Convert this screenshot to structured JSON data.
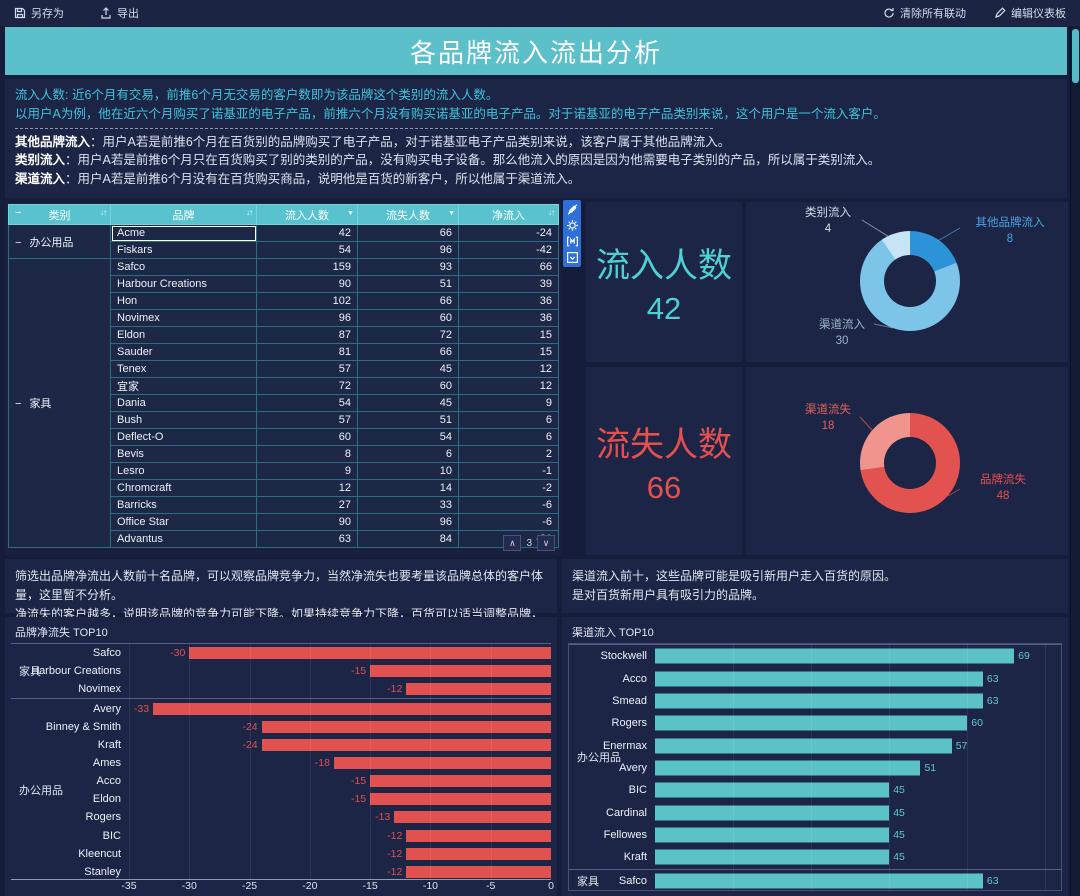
{
  "topbar": {
    "left": [
      {
        "label": "另存为",
        "icon": "save"
      },
      {
        "label": "导出",
        "icon": "export"
      }
    ],
    "right": [
      {
        "label": "清除所有联动",
        "icon": "refresh"
      },
      {
        "label": "编辑仪表板",
        "icon": "edit"
      }
    ]
  },
  "title": "各品牌流入流出分析",
  "description": {
    "intro": [
      "流入人数: 近6个月有交易，前推6个月无交易的客户数即为该品牌这个类别的流入人数。",
      "以用户A为例，他在近六个月购买了诺基亚的电子产品，前推六个月没有购买诺基亚的电子产品。对于诺基亚的电子产品类别来说，这个用户是一个流入客户。"
    ],
    "definitions": [
      {
        "term": "其他品牌流入",
        "text": "：用户A若是前推6个月在百货别的品牌购买了电子产品，对于诺基亚电子产品类别来说，该客户属于其他品牌流入。"
      },
      {
        "term": "类别流入",
        "text": "：用户A若是前推6个月只在百货购买了别的类别的产品，没有购买电子设备。那么他流入的原因是因为他需要电子类别的产品，所以属于类别流入。"
      },
      {
        "term": "渠道流入",
        "text": "：用户A若是前推6个月没有在百货购买商品，说明他是百货的新客户，所以他属于渠道流入。"
      }
    ]
  },
  "table": {
    "columns": [
      {
        "label": "类别",
        "icon": "sort",
        "collapse": "−"
      },
      {
        "label": "品牌",
        "icon": "sort"
      },
      {
        "label": "流入人数",
        "icon": "dropdown"
      },
      {
        "label": "流失人数",
        "icon": "dropdown"
      },
      {
        "label": "净流入",
        "icon": "sort"
      }
    ],
    "groups": [
      {
        "category": "办公用品",
        "rows": [
          {
            "brand": "Acme",
            "inflow": 42,
            "outflow": 66,
            "net": -24,
            "selected": true
          },
          {
            "brand": "Fiskars",
            "inflow": 54,
            "outflow": 96,
            "net": -42
          }
        ]
      },
      {
        "category": "家具",
        "rows": [
          {
            "brand": "Safco",
            "inflow": 159,
            "outflow": 93,
            "net": 66
          },
          {
            "brand": "Harbour Creations",
            "inflow": 90,
            "outflow": 51,
            "net": 39
          },
          {
            "brand": "Hon",
            "inflow": 102,
            "outflow": 66,
            "net": 36
          },
          {
            "brand": "Novimex",
            "inflow": 96,
            "outflow": 60,
            "net": 36
          },
          {
            "brand": "Eldon",
            "inflow": 87,
            "outflow": 72,
            "net": 15
          },
          {
            "brand": "Sauder",
            "inflow": 81,
            "outflow": 66,
            "net": 15
          },
          {
            "brand": "Tenex",
            "inflow": 57,
            "outflow": 45,
            "net": 12
          },
          {
            "brand": "宜家",
            "inflow": 72,
            "outflow": 60,
            "net": 12
          },
          {
            "brand": "Dania",
            "inflow": 54,
            "outflow": 45,
            "net": 9
          },
          {
            "brand": "Bush",
            "inflow": 57,
            "outflow": 51,
            "net": 6
          },
          {
            "brand": "Deflect-O",
            "inflow": 60,
            "outflow": 54,
            "net": 6
          },
          {
            "brand": "Bevis",
            "inflow": 8,
            "outflow": 6,
            "net": 2
          },
          {
            "brand": "Lesro",
            "inflow": 9,
            "outflow": 10,
            "net": -1
          },
          {
            "brand": "Chromcraft",
            "inflow": 12,
            "outflow": 14,
            "net": -2
          },
          {
            "brand": "Barricks",
            "inflow": 27,
            "outflow": 33,
            "net": -6
          },
          {
            "brand": "Office Star",
            "inflow": 90,
            "outflow": 96,
            "net": -6
          },
          {
            "brand": "Advantus",
            "inflow": 63,
            "outflow": 84,
            "net": -21
          }
        ]
      }
    ],
    "pagination": {
      "page": "3"
    }
  },
  "kpi": {
    "inflow": {
      "label": "流入人数",
      "value": "42",
      "color": "#4fd0d4"
    },
    "outflow": {
      "label": "流失人数",
      "value": "66",
      "color": "#e4504e"
    }
  },
  "notes": {
    "left": [
      "筛选出品牌净流出人数前十名品牌，可以观察品牌竞争力，当然净流失也要考量该品牌总体的客户体量，这里暂不分析。",
      "净流失的客户越多，说明该品牌的竞争力可能下降。如果持续竞争力下降，百货可以适当调整品牌，更换更具竞争力的品牌。"
    ],
    "right": [
      "渠道流入前十，这些品牌可能是吸引新用户走入百货的原因。",
      "是对百货新用户具有吸引力的品牌。"
    ]
  },
  "chart_data": [
    {
      "type": "pie",
      "name": "流入构成",
      "donut": true,
      "total": 42,
      "legend_position": "callout-labels",
      "slices": [
        {
          "name": "其他品牌流入",
          "value": 8,
          "color": "#2d93d8"
        },
        {
          "name": "渠道流入",
          "value": 30,
          "color": "#7cc5e9"
        },
        {
          "name": "类别流入",
          "value": 4,
          "color": "#c6e4f4"
        }
      ]
    },
    {
      "type": "pie",
      "name": "流失构成",
      "donut": true,
      "total": 66,
      "legend_position": "callout-labels",
      "slices": [
        {
          "name": "品牌流失",
          "value": 48,
          "color": "#e25350"
        },
        {
          "name": "渠道流失",
          "value": 18,
          "color": "#f2948e"
        }
      ]
    },
    {
      "type": "bar",
      "title": "品牌净流失 TOP10",
      "orientation": "horizontal",
      "xlim": [
        -35,
        0
      ],
      "xticks": [
        -35,
        -30,
        -25,
        -20,
        -15,
        -10,
        -5,
        0
      ],
      "bar_color": "#e15150",
      "grid": true,
      "groups": [
        {
          "name": "家具",
          "bars": [
            {
              "brand": "Safco",
              "value": -30
            },
            {
              "brand": "Harbour Creations",
              "value": -15
            },
            {
              "brand": "Novimex",
              "value": -12
            }
          ]
        },
        {
          "name": "办公用品",
          "bars": [
            {
              "brand": "Avery",
              "value": -33
            },
            {
              "brand": "Binney & Smith",
              "value": -24
            },
            {
              "brand": "Kraft",
              "value": -24
            },
            {
              "brand": "Ames",
              "value": -18
            },
            {
              "brand": "Acco",
              "value": -15
            },
            {
              "brand": "Eldon",
              "value": -15
            },
            {
              "brand": "Rogers",
              "value": -13
            },
            {
              "brand": "BIC",
              "value": -12
            },
            {
              "brand": "Kleencut",
              "value": -12
            },
            {
              "brand": "Stanley",
              "value": -12
            }
          ]
        }
      ]
    },
    {
      "type": "bar",
      "title": "渠道流入 TOP10",
      "orientation": "horizontal",
      "xlim": [
        0,
        78
      ],
      "gridline_step": 15,
      "bar_color": "#5bc3c8",
      "grid": true,
      "groups": [
        {
          "name": "办公用品",
          "bars": [
            {
              "brand": "Stockwell",
              "value": 69
            },
            {
              "brand": "Acco",
              "value": 63
            },
            {
              "brand": "Smead",
              "value": 63
            },
            {
              "brand": "Rogers",
              "value": 60
            },
            {
              "brand": "Enermax",
              "value": 57
            },
            {
              "brand": "Avery",
              "value": 51
            },
            {
              "brand": "BIC",
              "value": 45
            },
            {
              "brand": "Cardinal",
              "value": 45
            },
            {
              "brand": "Fellowes",
              "value": 45
            },
            {
              "brand": "Kraft",
              "value": 45
            }
          ]
        },
        {
          "name": "家具",
          "bars": [
            {
              "brand": "Safco",
              "value": 63
            }
          ]
        }
      ]
    }
  ]
}
